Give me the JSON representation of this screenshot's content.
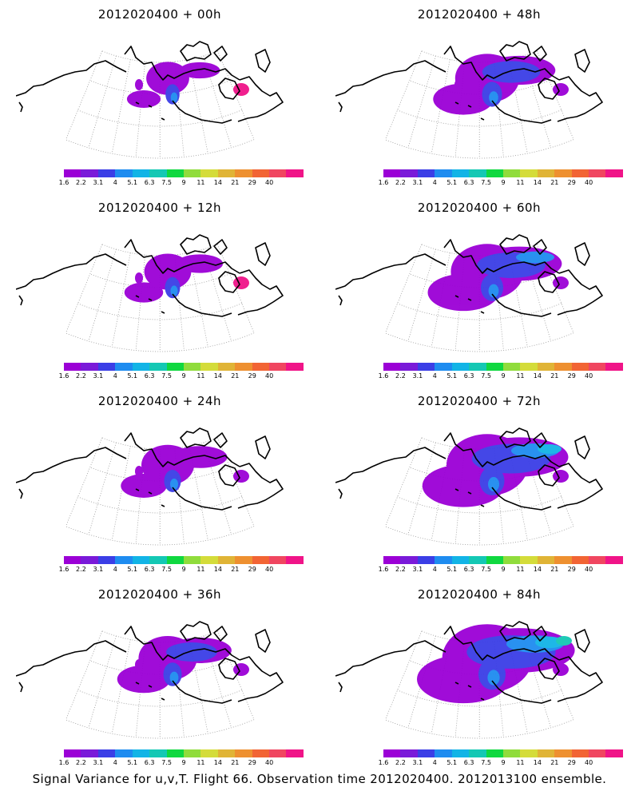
{
  "colorbar": {
    "colors": [
      "#9b00d6",
      "#7a1ad9",
      "#3b3ee6",
      "#1e8cf0",
      "#12b4e6",
      "#14c8b4",
      "#10d840",
      "#90dc3c",
      "#d4dc3a",
      "#e0b436",
      "#ee9030",
      "#f26434",
      "#f04660",
      "#f01488"
    ],
    "labels": [
      "1.6",
      "2.2",
      "3.1",
      "4",
      "5.1",
      "6.3",
      "7.5",
      "9",
      "11",
      "14",
      "21",
      "29",
      "40"
    ]
  },
  "panels": [
    {
      "title": "2012020400 + 00h",
      "intensity": 0.08
    },
    {
      "title": "2012020400 + 48h",
      "intensity": 0.45
    },
    {
      "title": "2012020400 + 12h",
      "intensity": 0.15
    },
    {
      "title": "2012020400 + 60h",
      "intensity": 0.6
    },
    {
      "title": "2012020400 + 24h",
      "intensity": 0.25
    },
    {
      "title": "2012020400 + 72h",
      "intensity": 0.75
    },
    {
      "title": "2012020400 + 36h",
      "intensity": 0.35
    },
    {
      "title": "2012020400 + 84h",
      "intensity": 0.9
    }
  ],
  "footer": "Signal Variance for u,v,T. Flight 66. Observation time 2012020400. 2012013100 ensemble."
}
